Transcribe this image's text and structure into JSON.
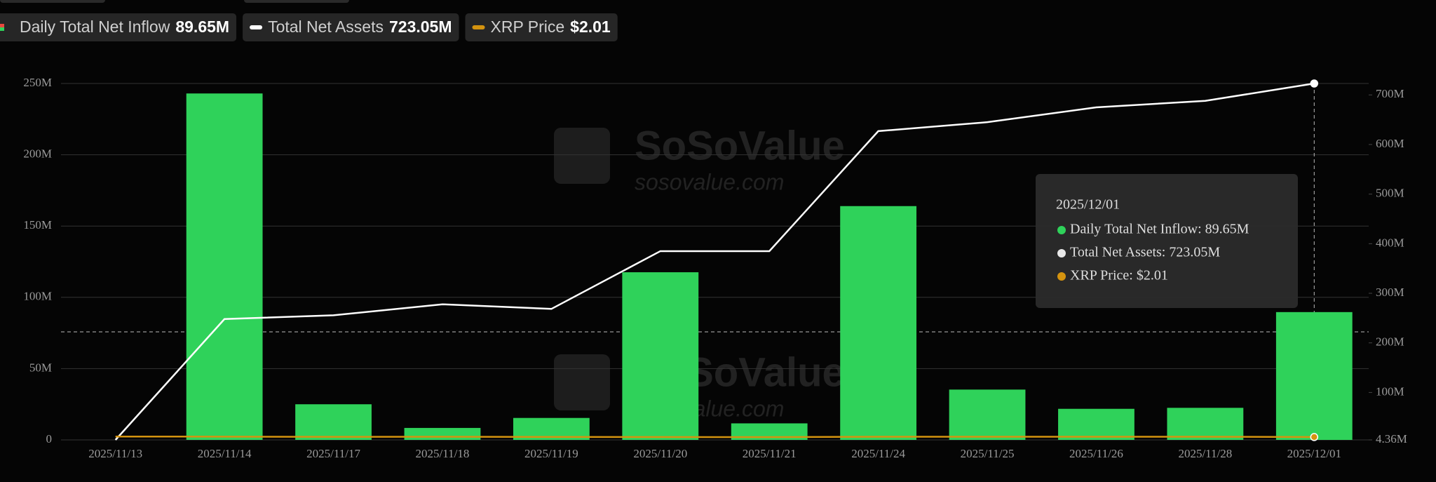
{
  "chart_data": {
    "type": "bar",
    "categories": [
      "2025/11/13",
      "2025/11/14",
      "2025/11/17",
      "2025/11/18",
      "2025/11/19",
      "2025/11/20",
      "2025/11/21",
      "2025/11/24",
      "2025/11/25",
      "2025/11/26",
      "2025/11/28",
      "2025/12/01"
    ],
    "series": [
      {
        "name": "Daily Total Net Inflow",
        "color": "#2fd25a",
        "type": "bar",
        "values": [
          0,
          243,
          25,
          8.4,
          15.4,
          117.6,
          11.6,
          164,
          35.3,
          21.8,
          22.5,
          89.65
        ]
      },
      {
        "name": "Total Net Assets",
        "color": "#ffffff",
        "type": "line",
        "axis": "y2",
        "values": [
          4.36,
          248,
          255.6,
          277.8,
          268.5,
          385,
          385,
          627,
          645,
          675,
          688,
          723.05
        ]
      },
      {
        "name": "XRP Price",
        "color": "#d4930f",
        "type": "line",
        "values": [
          2.35,
          2.28,
          2.15,
          2.2,
          2.1,
          2.0,
          1.95,
          2.2,
          2.2,
          2.2,
          2.2,
          2.01
        ]
      }
    ],
    "legend_values": [
      "89.65M",
      "723.05M",
      "$2.01"
    ],
    "ylim": [
      0,
      250
    ],
    "yticks": [
      0,
      {
        "value": 50,
        "label": "50M"
      },
      {
        "value": 100,
        "label": "100M"
      },
      {
        "value": 150,
        "label": "150M"
      },
      {
        "value": 200,
        "label": "200M"
      },
      {
        "value": 250,
        "label": "250M"
      }
    ],
    "y2lim": [
      4.36,
      723.05
    ],
    "y2ticks": [
      {
        "value": 4.36,
        "label": "4.36M"
      },
      {
        "value": 100,
        "label": "100M"
      },
      {
        "value": 200,
        "label": "200M"
      },
      {
        "value": 300,
        "label": "300M"
      },
      {
        "value": 400,
        "label": "400M"
      },
      {
        "value": 500,
        "label": "500M"
      },
      {
        "value": 600,
        "label": "600M"
      },
      {
        "value": 700,
        "label": "700M"
      }
    ],
    "grid": true,
    "tooltip": {
      "title": "2025/12/01",
      "lines": [
        "Daily Total Net Inflow: 89.65M",
        "Total Net Assets: 723.05M",
        "XRP Price: $2.01"
      ]
    },
    "watermark": {
      "brand": "SoSoValue",
      "site": "sosovalue.com"
    }
  }
}
